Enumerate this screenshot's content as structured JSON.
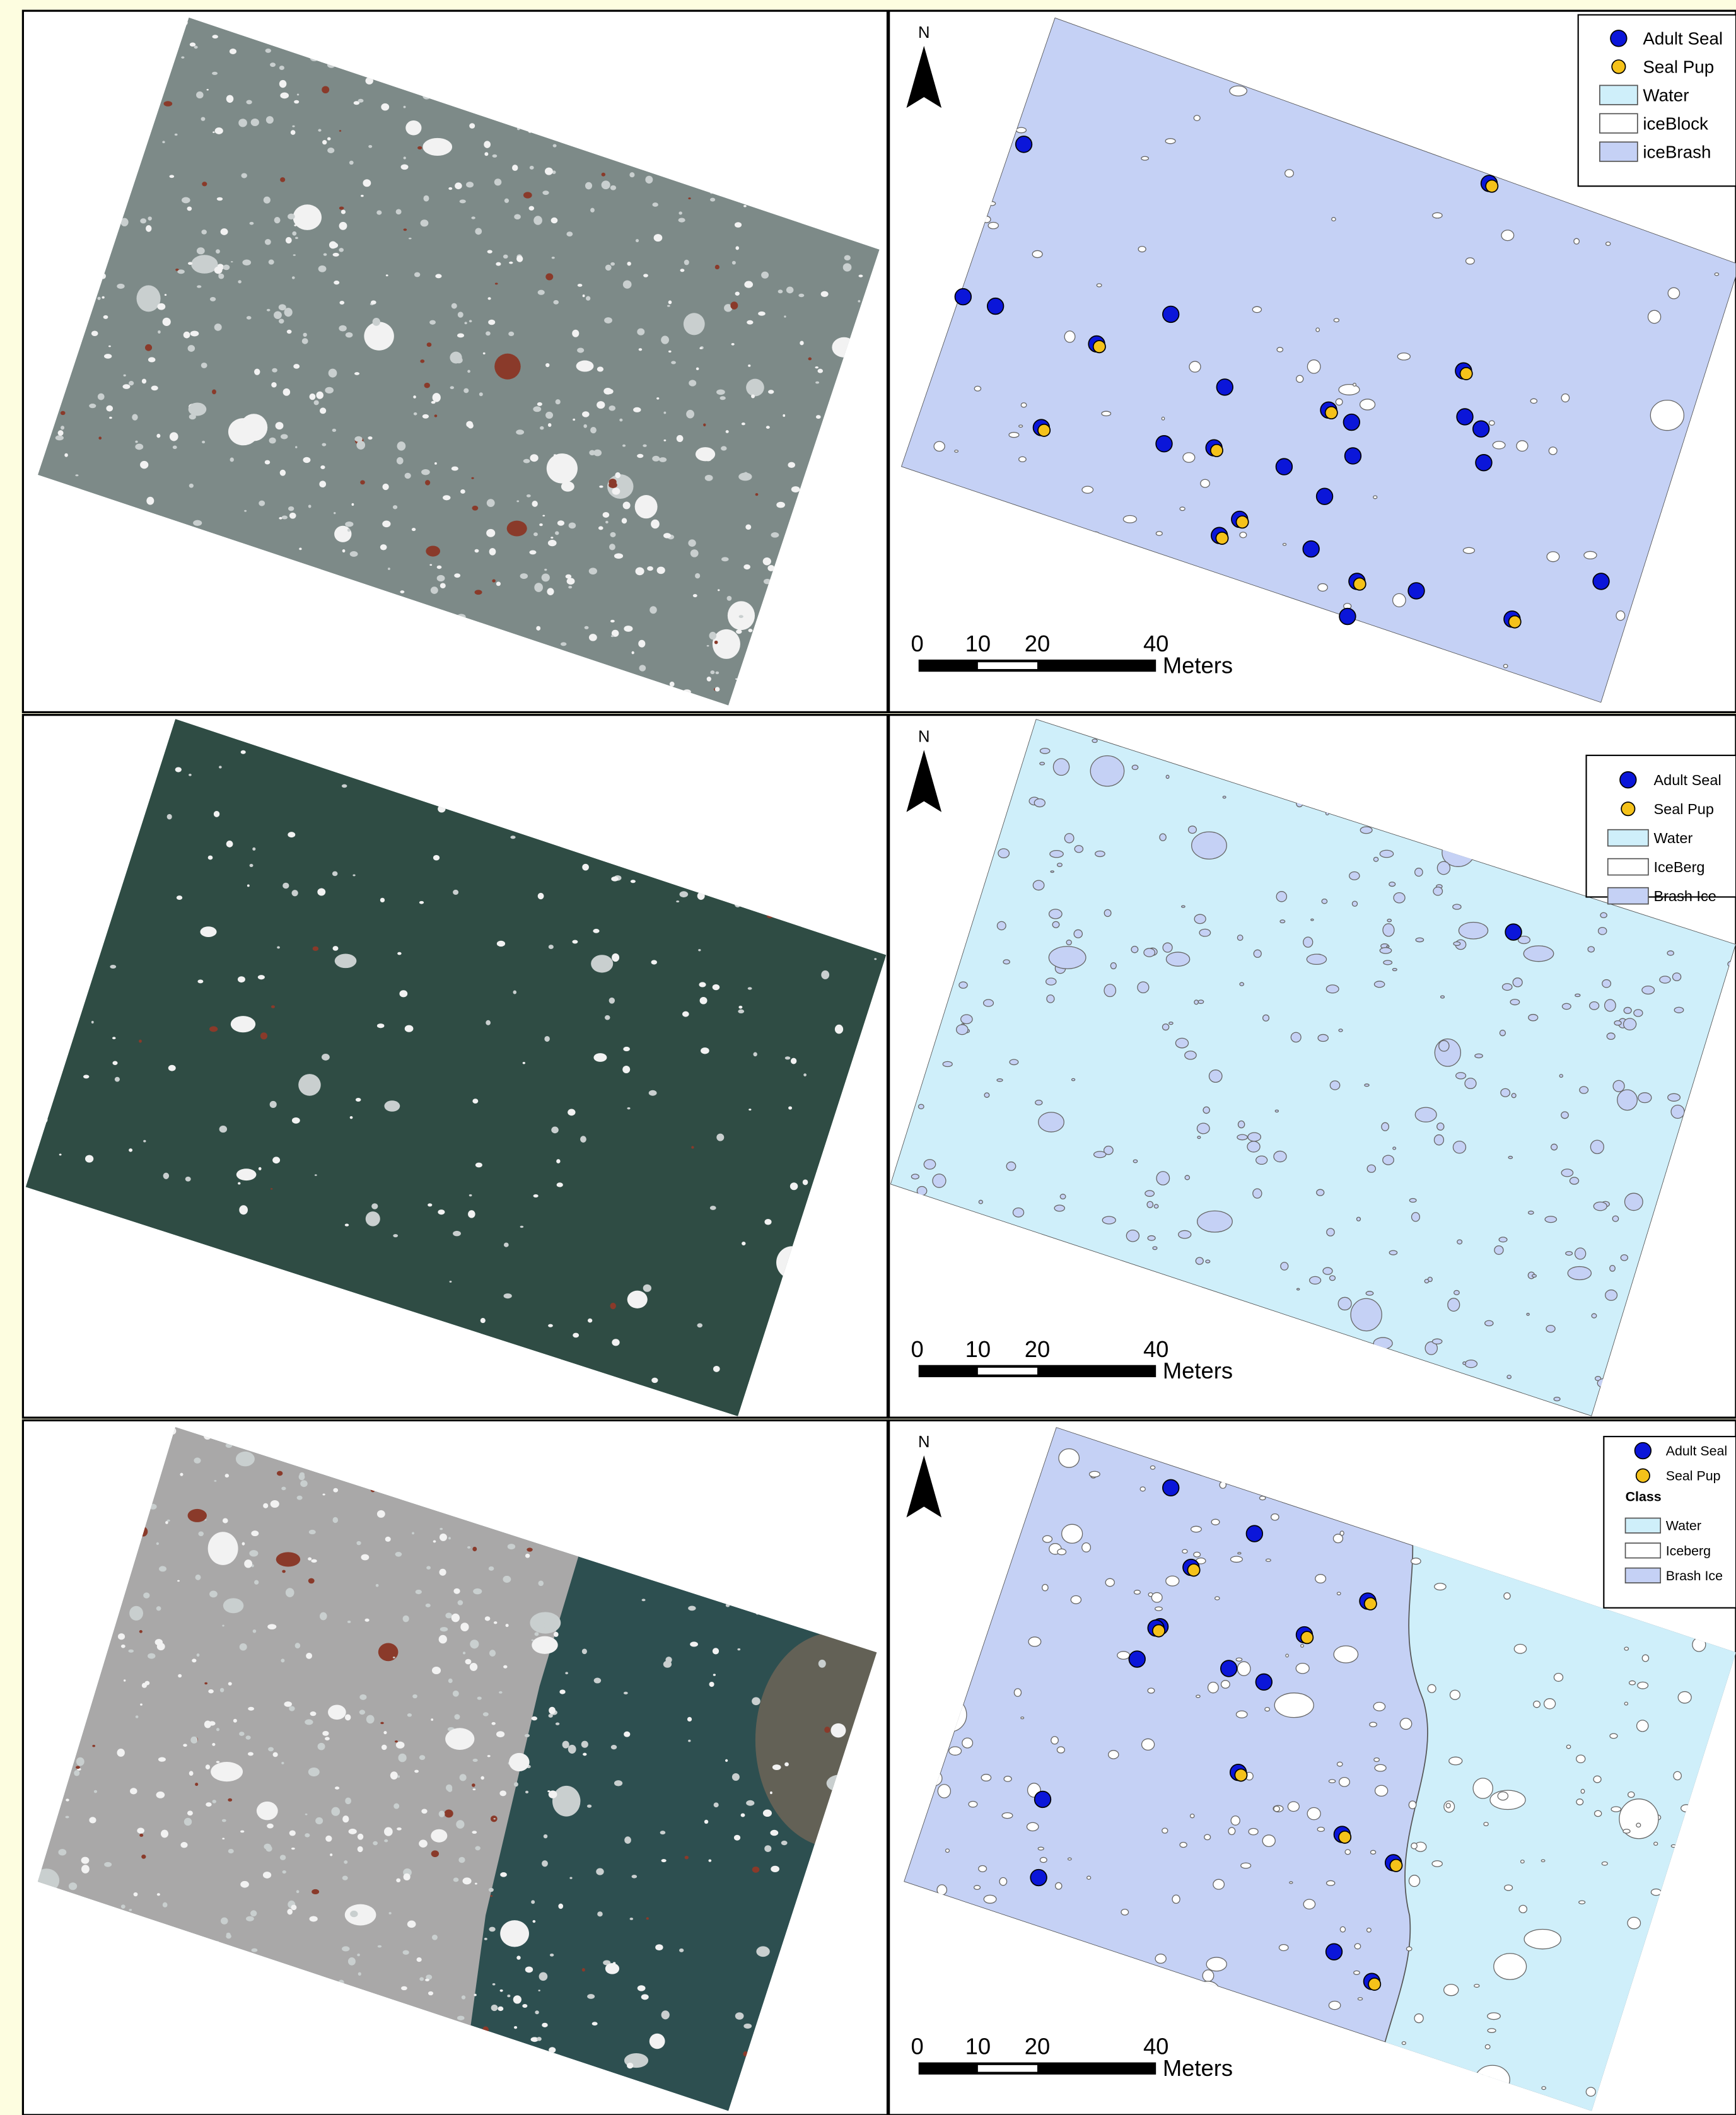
{
  "panels": [
    {
      "map": {
        "north": "N",
        "scale": {
          "ticks": [
            "0",
            "10",
            "20",
            "40"
          ],
          "unit": "Meters"
        },
        "legend": {
          "items": [
            "Adult Seal",
            "Seal Pup",
            "Water",
            "iceBlock",
            "iceBrash"
          ]
        }
      }
    },
    {
      "map": {
        "north": "N",
        "scale": {
          "ticks": [
            "0",
            "10",
            "20",
            "40"
          ],
          "unit": "Meters"
        },
        "legend": {
          "items": [
            "Adult Seal",
            "Seal Pup",
            "Water",
            "IceBerg",
            "Brash Ice"
          ]
        }
      }
    },
    {
      "map": {
        "north": "N",
        "scale": {
          "ticks": [
            "0",
            "10",
            "20",
            "40"
          ],
          "unit": "Meters"
        },
        "legend": {
          "items": [
            "Adult Seal",
            "Seal Pup",
            "Water",
            "Iceberg",
            "Brash Ice"
          ],
          "title": "Class"
        }
      }
    }
  ]
}
